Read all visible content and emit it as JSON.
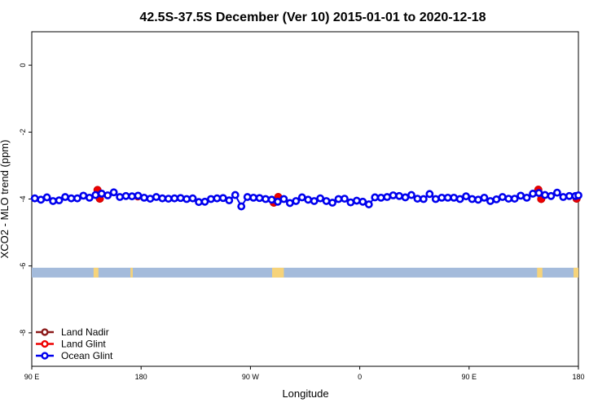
{
  "chart_data": {
    "type": "scatter",
    "title": "42.5S-37.5S December (Ver 10)   2015-01-01 to 2020-12-18",
    "xlabel": "Longitude",
    "ylabel": "XCO2 - MLO trend (ppm)",
    "xlim": [
      90,
      450
    ],
    "ylim": [
      -9,
      1
    ],
    "x_ticks": [
      {
        "value": 90,
        "label": "90 E"
      },
      {
        "value": 162,
        "label": "180"
      },
      {
        "value": 234,
        "label": "90 W"
      },
      {
        "value": 306,
        "label": "0"
      },
      {
        "value": 378,
        "label": "90 E"
      },
      {
        "value": 450,
        "label": "180"
      }
    ],
    "y_ticks": [
      0,
      -2,
      -4,
      -6,
      -8
    ],
    "grid": false,
    "legend_position": "bottom-left",
    "series": [
      {
        "name": "Land Nadir",
        "color": "#8b1a1a",
        "values": []
      },
      {
        "name": "Land Glint",
        "color": "#ee0000",
        "points": [
          [
            133.3,
            -3.73
          ],
          [
            134.8,
            -3.99
          ],
          [
            159.8,
            -3.92
          ],
          [
            249.4,
            -4.11
          ],
          [
            252.3,
            -3.94
          ],
          [
            423.6,
            -3.72
          ],
          [
            425.5,
            -4.0
          ],
          [
            448.8,
            -3.99
          ]
        ]
      },
      {
        "name": "Ocean Glint",
        "color": "#0000ee",
        "points": [
          [
            92.0,
            -3.98
          ],
          [
            96.0,
            -4.02
          ],
          [
            100.0,
            -3.95
          ],
          [
            104.0,
            -4.06
          ],
          [
            108.0,
            -4.04
          ],
          [
            112.0,
            -3.94
          ],
          [
            116.0,
            -3.98
          ],
          [
            120.0,
            -3.98
          ],
          [
            124.0,
            -3.9
          ],
          [
            128.0,
            -3.96
          ],
          [
            132.0,
            -3.88
          ],
          [
            136.0,
            -3.84
          ],
          [
            140.0,
            -3.89
          ],
          [
            144.0,
            -3.8
          ],
          [
            148.0,
            -3.94
          ],
          [
            152.0,
            -3.91
          ],
          [
            156.0,
            -3.92
          ],
          [
            160.0,
            -3.9
          ],
          [
            164.0,
            -3.96
          ],
          [
            168.0,
            -3.99
          ],
          [
            172.0,
            -3.94
          ],
          [
            176.0,
            -3.98
          ],
          [
            180.0,
            -3.99
          ],
          [
            184.0,
            -3.98
          ],
          [
            188.0,
            -3.97
          ],
          [
            192.0,
            -4.0
          ],
          [
            196.0,
            -3.98
          ],
          [
            200.0,
            -4.09
          ],
          [
            204.0,
            -4.08
          ],
          [
            208.0,
            -4.0
          ],
          [
            212.0,
            -3.98
          ],
          [
            216.0,
            -3.97
          ],
          [
            220.0,
            -4.04
          ],
          [
            224.0,
            -3.88
          ],
          [
            228.0,
            -4.22
          ],
          [
            232.0,
            -3.94
          ],
          [
            236.0,
            -3.96
          ],
          [
            240.0,
            -3.97
          ],
          [
            244.0,
            -4.0
          ],
          [
            248.0,
            -4.02
          ],
          [
            252.0,
            -4.08
          ],
          [
            256.0,
            -4.0
          ],
          [
            260.0,
            -4.12
          ],
          [
            264.0,
            -4.06
          ],
          [
            268.0,
            -3.95
          ],
          [
            272.0,
            -4.02
          ],
          [
            276.0,
            -4.06
          ],
          [
            280.0,
            -3.98
          ],
          [
            284.0,
            -4.06
          ],
          [
            288.0,
            -4.11
          ],
          [
            292.0,
            -4.0
          ],
          [
            296.0,
            -3.99
          ],
          [
            300.0,
            -4.1
          ],
          [
            304.0,
            -4.05
          ],
          [
            308.0,
            -4.08
          ],
          [
            312.0,
            -4.16
          ],
          [
            316.0,
            -3.95
          ],
          [
            320.0,
            -3.96
          ],
          [
            324.0,
            -3.94
          ],
          [
            328.0,
            -3.89
          ],
          [
            332.0,
            -3.91
          ],
          [
            336.0,
            -3.95
          ],
          [
            340.0,
            -3.88
          ],
          [
            344.0,
            -3.99
          ],
          [
            348.0,
            -4.0
          ],
          [
            352.0,
            -3.85
          ],
          [
            356.0,
            -4.0
          ],
          [
            360.0,
            -3.96
          ],
          [
            364.0,
            -3.96
          ],
          [
            368.0,
            -3.96
          ],
          [
            372.0,
            -4.0
          ],
          [
            376.0,
            -3.92
          ],
          [
            380.0,
            -4.0
          ],
          [
            384.0,
            -4.02
          ],
          [
            388.0,
            -3.96
          ],
          [
            392.0,
            -4.06
          ],
          [
            396.0,
            -4.01
          ],
          [
            400.0,
            -3.94
          ],
          [
            404.0,
            -3.99
          ],
          [
            408.0,
            -3.99
          ],
          [
            412.0,
            -3.9
          ],
          [
            416.0,
            -3.96
          ],
          [
            420.0,
            -3.84
          ],
          [
            424.0,
            -3.82
          ],
          [
            428.0,
            -3.88
          ],
          [
            432.0,
            -3.91
          ],
          [
            436.0,
            -3.81
          ],
          [
            440.0,
            -3.94
          ],
          [
            444.0,
            -3.91
          ],
          [
            448.0,
            -3.91
          ],
          [
            450.0,
            -3.89
          ]
        ]
      }
    ],
    "land_bar": {
      "y": -6.2,
      "ocean_color": "#a4bbdb",
      "land_color": "#f6d37a",
      "land_ranges": [
        [
          130.7,
          133.9
        ],
        [
          155.0,
          156.5
        ],
        [
          248.3,
          256.0
        ],
        [
          422.8,
          426.3
        ],
        [
          446.8,
          450.0
        ]
      ]
    }
  }
}
